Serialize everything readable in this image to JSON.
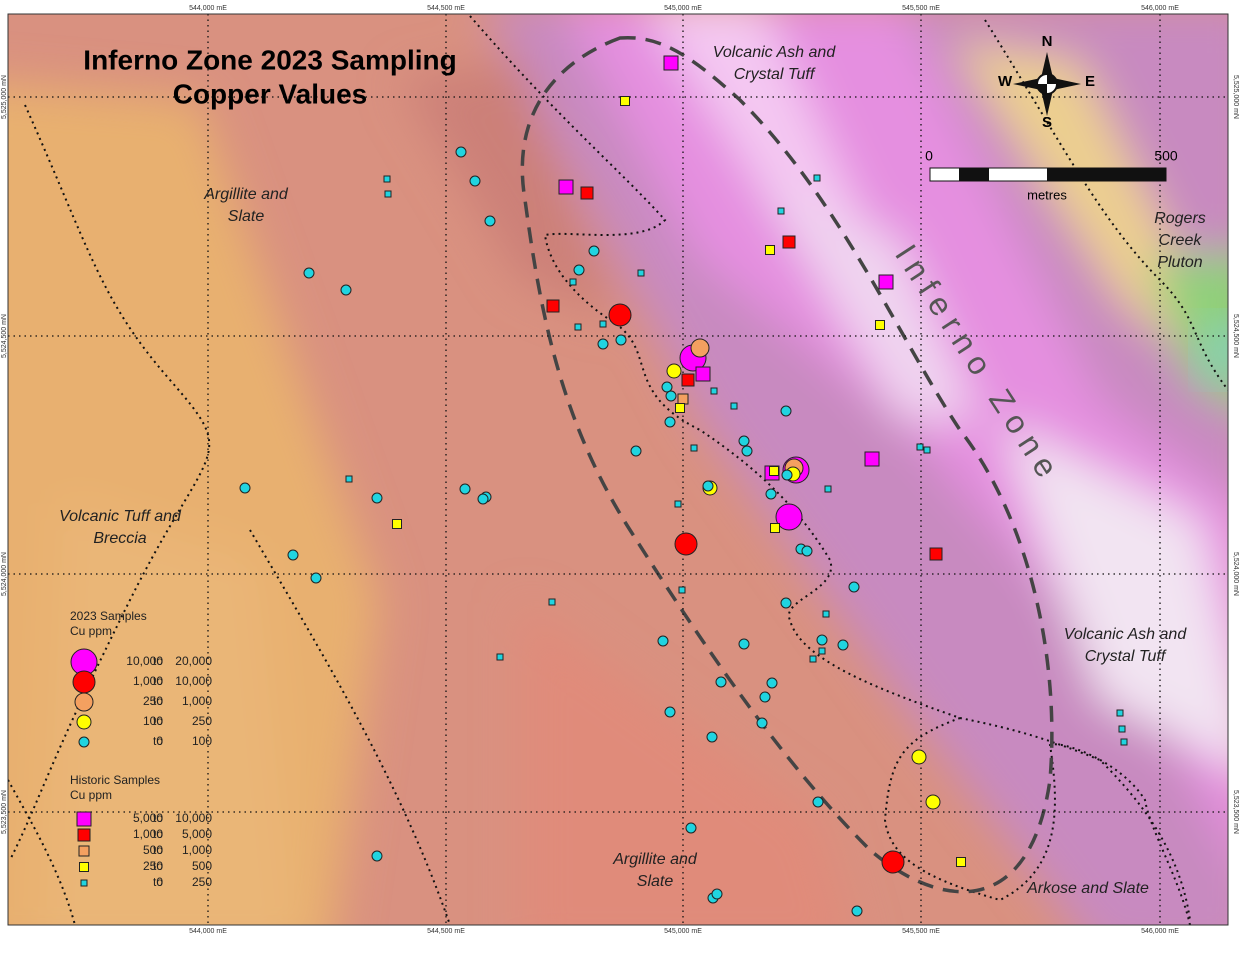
{
  "title": [
    "Inferno Zone 2023 Sampling",
    "Copper Values"
  ],
  "grid_labels": {
    "eastings": [
      "544,000 mE",
      "544,500 mE",
      "545,000 mE",
      "545,500 mE",
      "546,000 mE"
    ],
    "northings": [
      "5,525,000 mN",
      "5,524,500 mN",
      "5,524,000 mN",
      "5,523,500 mN"
    ]
  },
  "compass": {
    "n": "N",
    "e": "E",
    "s": "S",
    "w": "W"
  },
  "scale_bar": {
    "start": "0",
    "end": "500",
    "unit": "metres"
  },
  "units": [
    "Volcanic Ash and",
    "Crystal Tuff",
    "Argillite and",
    "Slate",
    "Rogers",
    "Creek",
    "Pluton",
    "Volcanic Tuff and",
    "Breccia",
    "Volcanic Ash and",
    "Crystal Tuff",
    "Argillite and",
    "Slate",
    "Arkose and Slate"
  ],
  "zone_label": "Inferno Zone",
  "legend": {
    "to": "to",
    "samples_2023": {
      "title": "2023 Samples",
      "unit": "Cu ppm",
      "rows": [
        [
          "10,000",
          "20,000"
        ],
        [
          "1,000",
          "10,000"
        ],
        [
          "250",
          "1,000"
        ],
        [
          "100",
          "250"
        ],
        [
          "0",
          "100"
        ]
      ]
    },
    "historic": {
      "title": "Historic Samples",
      "unit": "Cu ppm",
      "rows": [
        [
          "5,000",
          "10,000"
        ],
        [
          "1,000",
          "5,000"
        ],
        [
          "500",
          "1,000"
        ],
        [
          "250",
          "500"
        ],
        [
          "0",
          "250"
        ]
      ]
    }
  }
}
